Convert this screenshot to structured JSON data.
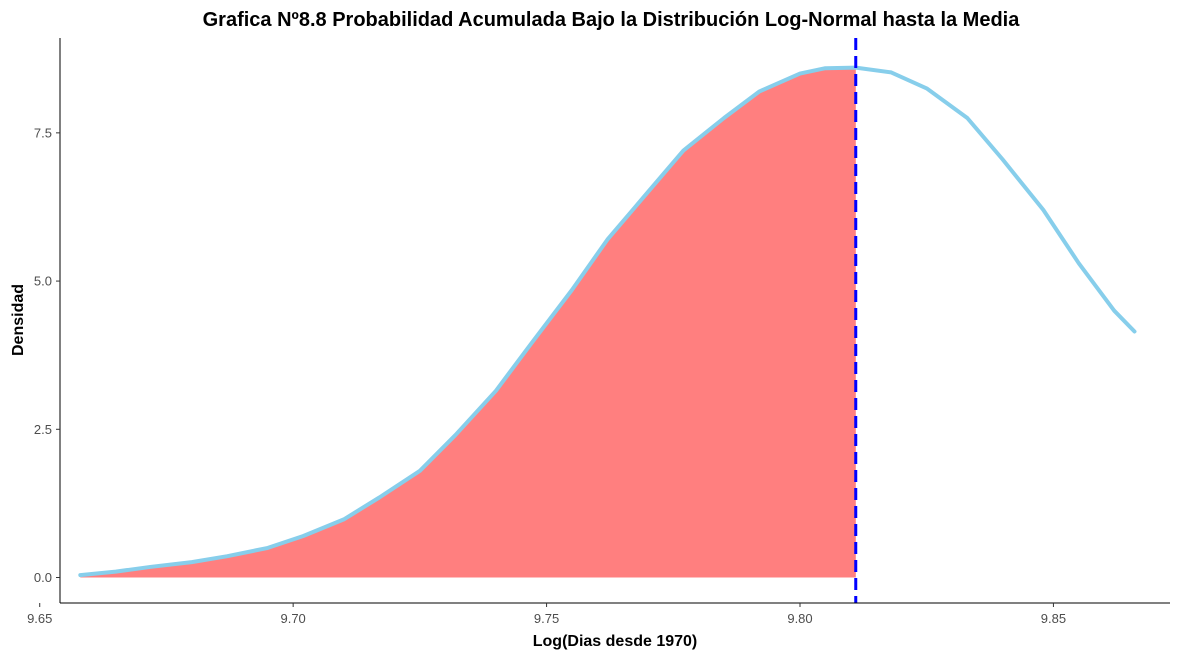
{
  "chart_data": {
    "type": "area",
    "title": "Grafica Nº8.8 Probabilidad Acumulada Bajo la Distribución Log-Normal hasta la Media",
    "xlabel": "Log(Dias desde 1970)",
    "ylabel": "Densidad",
    "xlim": [
      9.654,
      9.873
    ],
    "ylim": [
      -0.43,
      9.1
    ],
    "x_ticks": [
      9.65,
      9.7,
      9.75,
      9.8,
      9.85
    ],
    "x_tick_labels": [
      "9.65",
      "9.70",
      "9.75",
      "9.80",
      "9.85"
    ],
    "y_ticks": [
      0,
      2.5,
      5.0,
      7.5
    ],
    "y_tick_labels": [
      "0.0",
      "2.5",
      "5.0",
      "7.5"
    ],
    "density_curve": {
      "x": [
        9.658,
        9.665,
        9.672,
        9.68,
        9.687,
        9.695,
        9.702,
        9.71,
        9.717,
        9.725,
        9.732,
        9.74,
        9.747,
        9.755,
        9.762,
        9.77,
        9.777,
        9.785,
        9.792,
        9.8,
        9.805,
        9.811,
        9.818,
        9.825,
        9.833,
        9.84,
        9.848,
        9.855,
        9.862,
        9.866
      ],
      "y": [
        0.04,
        0.1,
        0.18,
        0.26,
        0.36,
        0.5,
        0.7,
        0.98,
        1.35,
        1.8,
        2.4,
        3.15,
        3.95,
        4.85,
        5.7,
        6.5,
        7.2,
        7.75,
        8.2,
        8.5,
        8.59,
        8.6,
        8.52,
        8.25,
        7.75,
        7.05,
        6.2,
        5.3,
        4.5,
        4.15
      ],
      "color": "#87CEEB"
    },
    "shaded_area": {
      "from_x": 9.658,
      "to_x": 9.811,
      "color": "#FF7F7F"
    },
    "mean_line": {
      "x": 9.811,
      "color": "#0000FF",
      "style": "dashed"
    },
    "grid": false
  }
}
